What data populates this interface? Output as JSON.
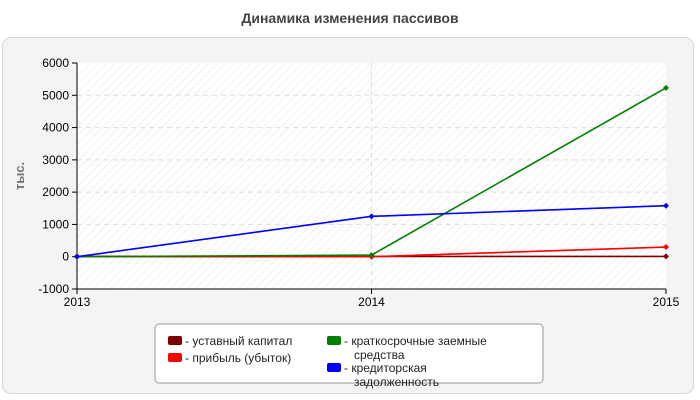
{
  "chart_data": {
    "type": "line",
    "title": "Динамика изменения пассивов",
    "xlabel": "",
    "ylabel": "тыс.",
    "categories": [
      "2013",
      "2014",
      "2015"
    ],
    "ylim": [
      -1000,
      6000
    ],
    "yticks": [
      -1000,
      0,
      1000,
      2000,
      3000,
      4000,
      5000,
      6000
    ],
    "grid": true,
    "legend_position": "bottom",
    "series": [
      {
        "name": "- уставный капитал",
        "color": "#800000",
        "values": [
          10,
          10,
          10
        ]
      },
      {
        "name": "- прибыль (убыток)",
        "color": "#ff0000",
        "values": [
          0,
          0,
          300
        ]
      },
      {
        "name": "- краткосрочные заемные средства",
        "color": "#008000",
        "values": [
          0,
          50,
          5230
        ]
      },
      {
        "name": "- кредиторская задолженность",
        "color": "#0000ff",
        "values": [
          0,
          1250,
          1580
        ]
      }
    ]
  }
}
